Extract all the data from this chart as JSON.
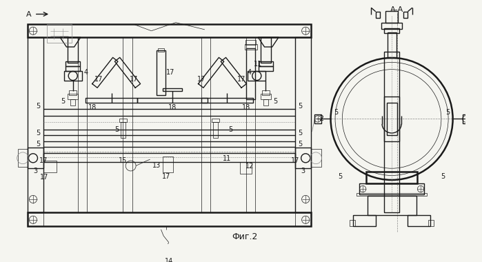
{
  "figure_label": "Фиг.2",
  "bg_color": "#f5f5f0",
  "line_color": "#1a1a1a",
  "gray": "#888888",
  "lw_main": 1.0,
  "lw_thick": 1.8,
  "lw_thin": 0.5,
  "lw_dash": 0.5
}
